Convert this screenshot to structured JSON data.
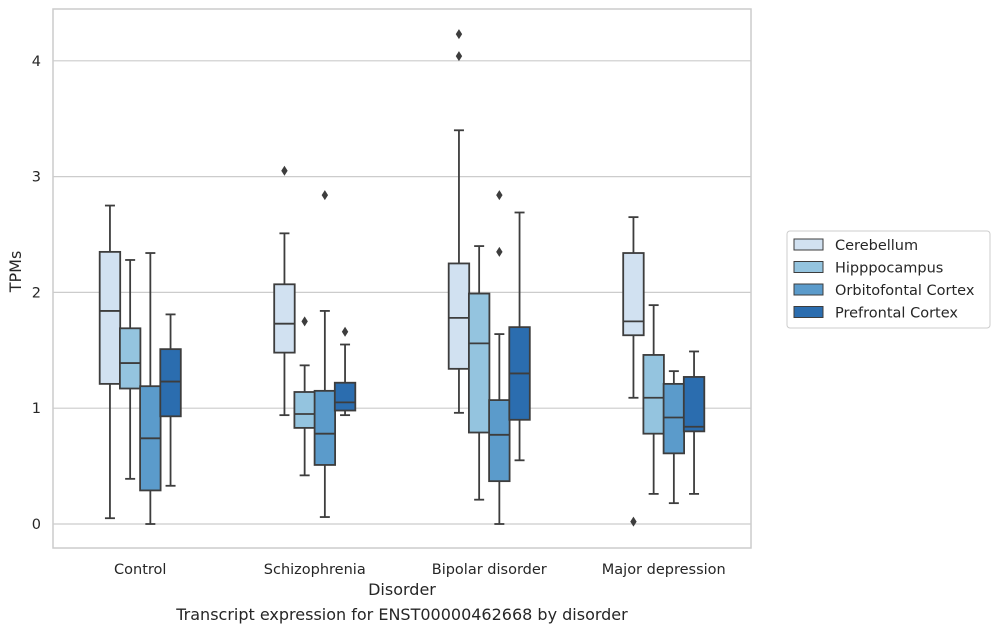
{
  "chart_data": {
    "type": "box",
    "title": "",
    "xlabel": "Disorder",
    "ylabel": "TPMs",
    "caption": "Transcript expression for ENST00000462668 by disorder",
    "ylim": [
      -0.2,
      4.45
    ],
    "yticks": [
      0,
      1,
      2,
      3,
      4
    ],
    "grid": "horizontal",
    "legend_position": "right",
    "categories": [
      "Control",
      "Schizophrenia",
      "Bipolar disorder",
      "Major depression"
    ],
    "series": [
      {
        "name": "Cerebellum",
        "color": "#d1e1f1",
        "boxes": [
          {
            "whislo": 0.05,
            "q1": 1.21,
            "med": 1.84,
            "q3": 2.35,
            "whishi": 2.75,
            "fliers": []
          },
          {
            "whislo": 0.94,
            "q1": 1.48,
            "med": 1.73,
            "q3": 2.07,
            "whishi": 2.51,
            "fliers": [
              3.05
            ]
          },
          {
            "whislo": 0.96,
            "q1": 1.34,
            "med": 1.78,
            "q3": 2.25,
            "whishi": 3.4,
            "fliers": [
              4.04,
              4.23
            ]
          },
          {
            "whislo": 1.09,
            "q1": 1.63,
            "med": 1.75,
            "q3": 2.34,
            "whishi": 2.65,
            "fliers": [
              0.02
            ]
          }
        ]
      },
      {
        "name": "Hipppocampus",
        "color": "#94c4df",
        "boxes": [
          {
            "whislo": 0.39,
            "q1": 1.17,
            "med": 1.39,
            "q3": 1.69,
            "whishi": 2.28,
            "fliers": []
          },
          {
            "whislo": 0.42,
            "q1": 0.83,
            "med": 0.95,
            "q3": 1.14,
            "whishi": 1.37,
            "fliers": [
              1.75
            ]
          },
          {
            "whislo": 0.21,
            "q1": 0.79,
            "med": 1.56,
            "q3": 1.99,
            "whishi": 2.4,
            "fliers": []
          },
          {
            "whislo": 0.26,
            "q1": 0.78,
            "med": 1.09,
            "q3": 1.46,
            "whishi": 1.89,
            "fliers": []
          }
        ]
      },
      {
        "name": "Orbitofontal Cortex",
        "color": "#5b9bcb",
        "boxes": [
          {
            "whislo": 0.0,
            "q1": 0.29,
            "med": 0.74,
            "q3": 1.19,
            "whishi": 2.34,
            "fliers": []
          },
          {
            "whislo": 0.06,
            "q1": 0.51,
            "med": 0.78,
            "q3": 1.15,
            "whishi": 1.84,
            "fliers": [
              2.84
            ]
          },
          {
            "whislo": 0.0,
            "q1": 0.37,
            "med": 0.77,
            "q3": 1.07,
            "whishi": 1.64,
            "fliers": [
              2.35,
              2.84
            ]
          },
          {
            "whislo": 0.18,
            "q1": 0.61,
            "med": 0.92,
            "q3": 1.21,
            "whishi": 1.32,
            "fliers": []
          }
        ]
      },
      {
        "name": "Prefrontal Cortex",
        "color": "#2b6daf",
        "boxes": [
          {
            "whislo": 0.33,
            "q1": 0.93,
            "med": 1.23,
            "q3": 1.51,
            "whishi": 1.81,
            "fliers": []
          },
          {
            "whislo": 0.94,
            "q1": 0.98,
            "med": 1.05,
            "q3": 1.22,
            "whishi": 1.55,
            "fliers": [
              1.66
            ]
          },
          {
            "whislo": 0.55,
            "q1": 0.9,
            "med": 1.3,
            "q3": 1.7,
            "whishi": 2.69,
            "fliers": []
          },
          {
            "whislo": 0.26,
            "q1": 0.8,
            "med": 0.84,
            "q3": 1.27,
            "whishi": 1.49,
            "fliers": []
          }
        ]
      }
    ]
  }
}
